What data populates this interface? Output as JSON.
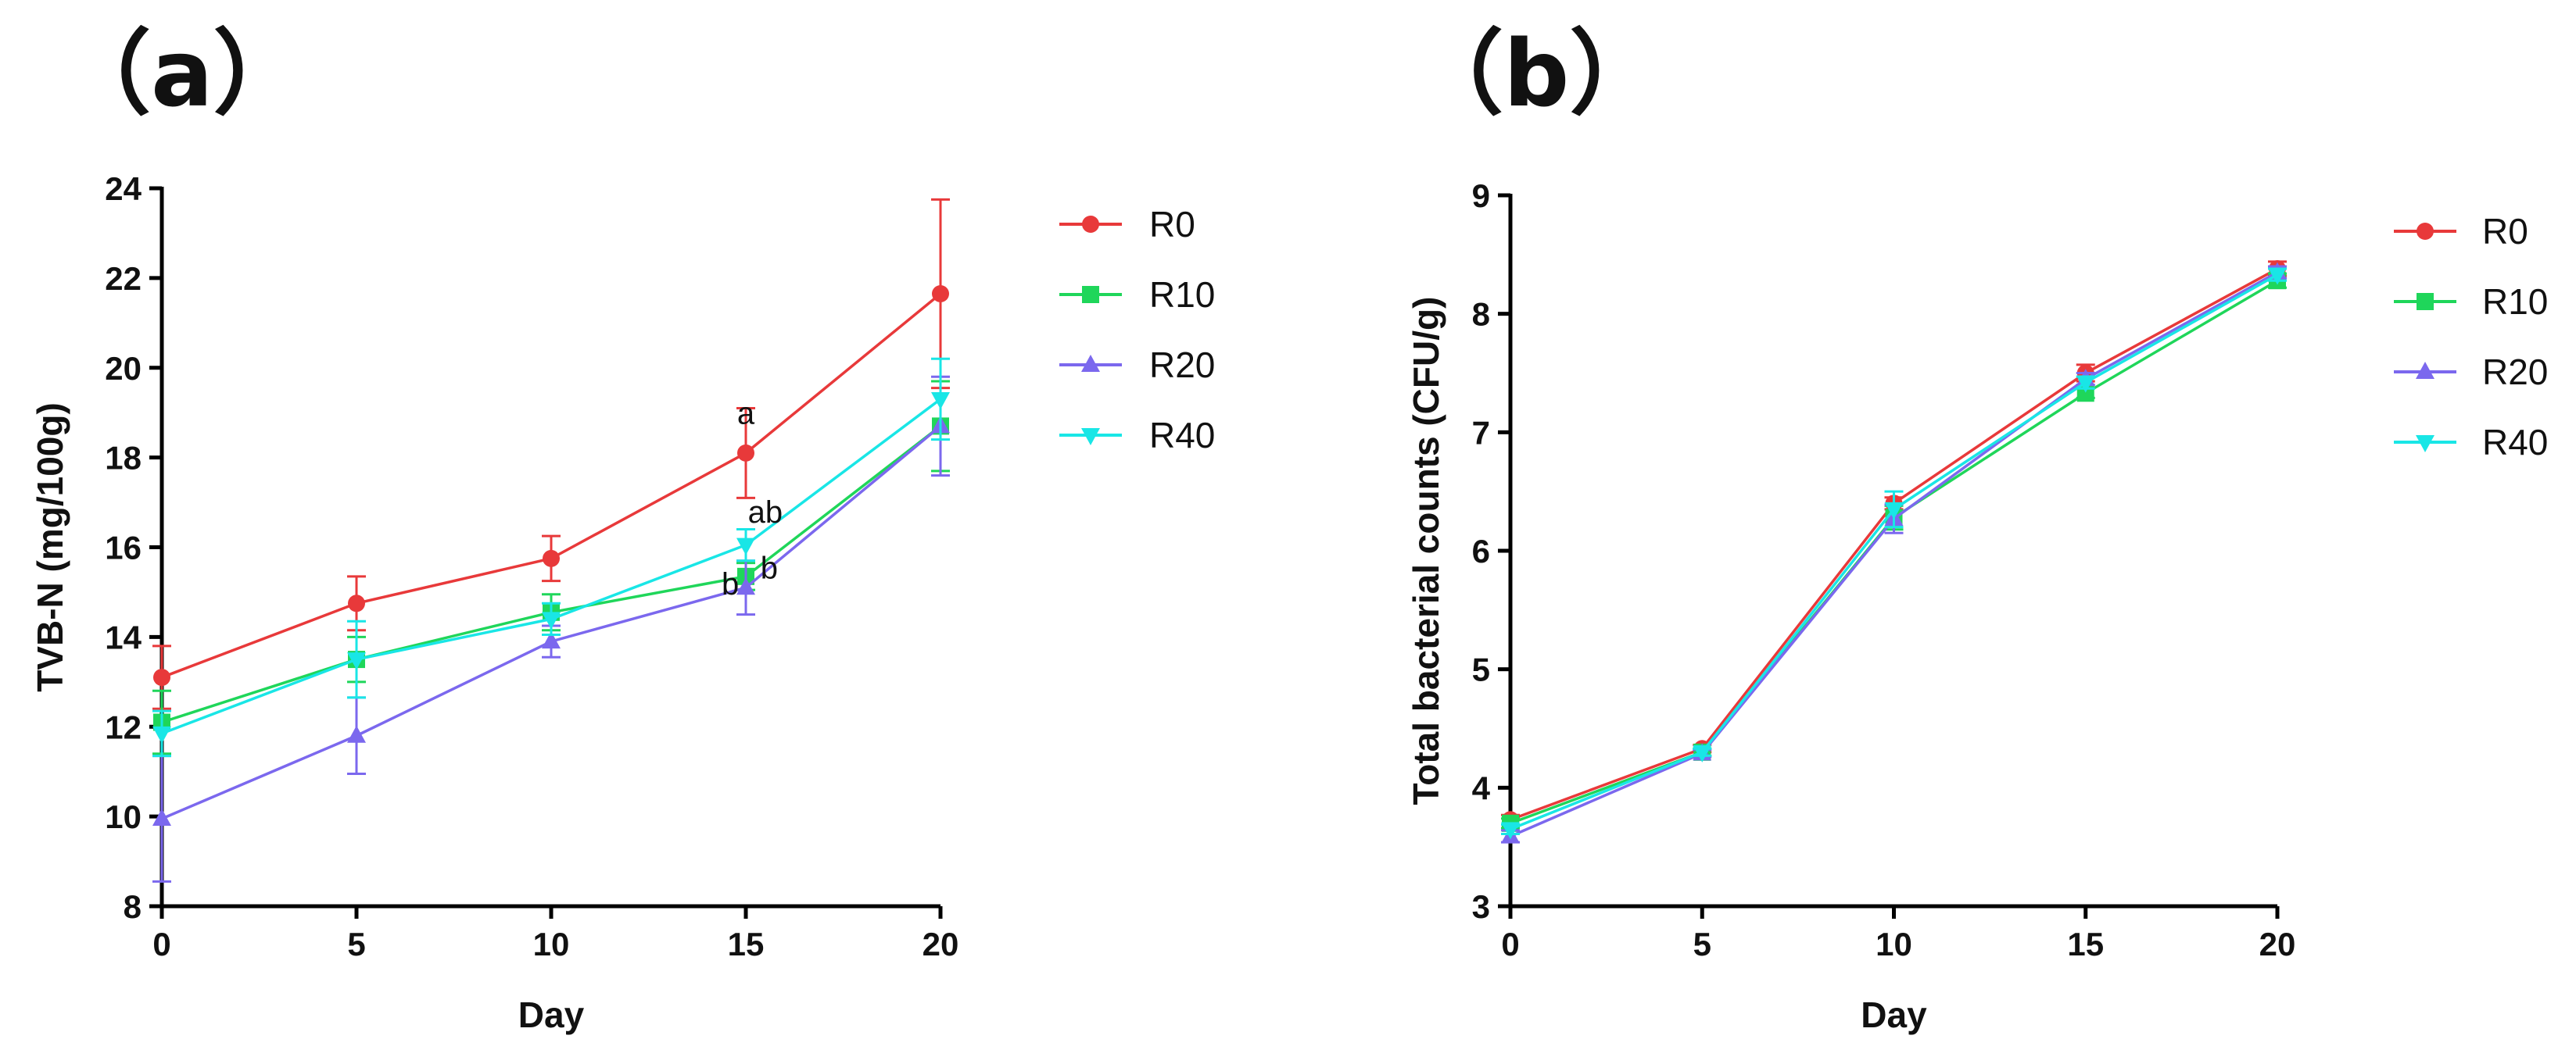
{
  "chart_data": [
    {
      "type": "line",
      "panel_label": "（a）",
      "title": "",
      "xlabel": "Day",
      "ylabel": "TVB-N (mg/100g)",
      "x": [
        0,
        5,
        10,
        15,
        20
      ],
      "xlim": [
        0,
        20
      ],
      "ylim": [
        8,
        24
      ],
      "xticks": [
        "0",
        "5",
        "10",
        "15",
        "20"
      ],
      "yticks": [
        "8",
        "10",
        "12",
        "14",
        "16",
        "18",
        "20",
        "22",
        "24"
      ],
      "grid": false,
      "legend_position": "right",
      "series": [
        {
          "name": "R0",
          "color": "#E8393A",
          "marker": "circle",
          "values": [
            13.1,
            14.75,
            15.75,
            18.1,
            21.65
          ],
          "errors": [
            0.7,
            0.6,
            0.5,
            1.0,
            2.1
          ]
        },
        {
          "name": "R10",
          "color": "#1FD65A",
          "marker": "square",
          "values": [
            12.1,
            13.5,
            14.55,
            15.35,
            18.7
          ],
          "errors": [
            0.7,
            0.5,
            0.4,
            0.3,
            1.0
          ]
        },
        {
          "name": "R20",
          "color": "#7B68EE",
          "marker": "triangle-up",
          "values": [
            9.95,
            11.8,
            13.9,
            15.1,
            18.7
          ],
          "errors": [
            1.4,
            0.85,
            0.35,
            0.6,
            1.1
          ]
        },
        {
          "name": "R40",
          "color": "#19E6E6",
          "marker": "triangle-down",
          "values": [
            11.85,
            13.5,
            14.4,
            16.05,
            19.3
          ],
          "errors": [
            0.5,
            0.85,
            0.35,
            0.35,
            0.9
          ]
        }
      ],
      "annotations": [
        {
          "text": "a",
          "x": 15,
          "y": 18.75
        },
        {
          "text": "ab",
          "x": 15.5,
          "y": 16.55
        },
        {
          "text": "b",
          "x": 14.6,
          "y": 14.95
        },
        {
          "text": "b",
          "x": 15.6,
          "y": 15.3
        }
      ]
    },
    {
      "type": "line",
      "panel_label": "（b）",
      "title": "",
      "xlabel": "Day",
      "ylabel": "Total bacterial counts (CFU/g)",
      "x": [
        0,
        5,
        10,
        15,
        20
      ],
      "xlim": [
        0,
        20
      ],
      "ylim": [
        3,
        9
      ],
      "xticks": [
        "0",
        "5",
        "10",
        "15",
        "20"
      ],
      "yticks": [
        "3",
        "4",
        "5",
        "6",
        "7",
        "8",
        "9"
      ],
      "grid": false,
      "legend_position": "right",
      "series": [
        {
          "name": "R0",
          "color": "#E8393A",
          "marker": "circle",
          "values": [
            3.73,
            4.33,
            6.4,
            7.5,
            8.38
          ],
          "errors": [
            0.04,
            0.03,
            0.05,
            0.07,
            0.06
          ]
        },
        {
          "name": "R10",
          "color": "#1FD65A",
          "marker": "square",
          "values": [
            3.7,
            4.3,
            6.28,
            7.33,
            8.28
          ],
          "errors": [
            0.04,
            0.03,
            0.1,
            0.04,
            0.06
          ]
        },
        {
          "name": "R20",
          "color": "#7B68EE",
          "marker": "triangle-up",
          "values": [
            3.59,
            4.29,
            6.27,
            7.45,
            8.35
          ],
          "errors": [
            0.05,
            0.03,
            0.12,
            0.05,
            0.05
          ]
        },
        {
          "name": "R40",
          "color": "#19E6E6",
          "marker": "triangle-down",
          "values": [
            3.65,
            4.3,
            6.35,
            7.42,
            8.33
          ],
          "errors": [
            0.04,
            0.03,
            0.15,
            0.05,
            0.05
          ]
        }
      ],
      "annotations": []
    }
  ]
}
